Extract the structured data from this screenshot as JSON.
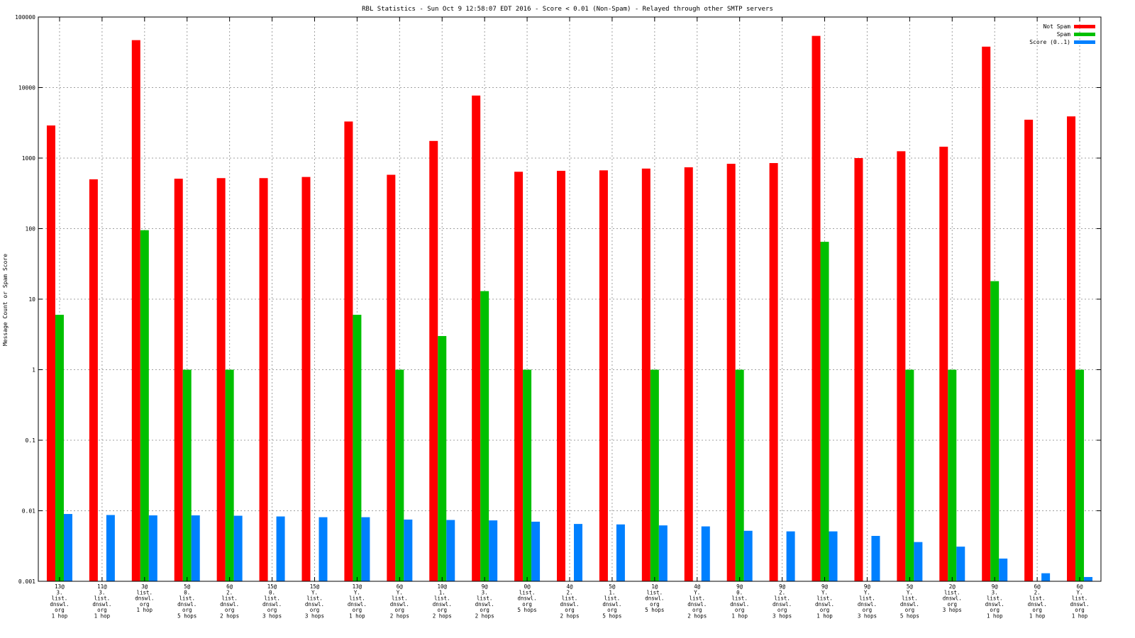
{
  "chart_data": {
    "type": "bar",
    "title": "RBL Statistics - Sun Oct  9 12:58:07 EDT 2016 - Score < 0.01 (Non-Spam) - Relayed through other SMTP servers",
    "xlabel": "",
    "ylabel": "Message Count or Spam Score",
    "yscale": "log",
    "ylim": [
      0.001,
      100000
    ],
    "yticks": [
      "100000",
      "10000",
      "1000",
      "100",
      "10",
      "1",
      "0.1",
      "0.01",
      "0.001"
    ],
    "grid": true,
    "legend_position": "top-right",
    "categories": [
      [
        "13@",
        "3.",
        "list.",
        "dnswl.",
        "org",
        "1 hop"
      ],
      [
        "11@",
        "3.",
        "list.",
        "dnswl.",
        "org",
        "1 hop"
      ],
      [
        "3@",
        "list.",
        "dnswl.",
        "org",
        "1 hop"
      ],
      [
        "5@",
        "0.",
        "list.",
        "dnswl.",
        "org",
        "5 hops"
      ],
      [
        "6@",
        "2.",
        "list.",
        "dnswl.",
        "org",
        "2 hops"
      ],
      [
        "15@",
        "0.",
        "list.",
        "dnswl.",
        "org",
        "3 hops"
      ],
      [
        "15@",
        "Y.",
        "list.",
        "dnswl.",
        "org",
        "3 hops"
      ],
      [
        "13@",
        "Y.",
        "list.",
        "dnswl.",
        "org",
        "1 hop"
      ],
      [
        "6@",
        "Y.",
        "list.",
        "dnswl.",
        "org",
        "2 hops"
      ],
      [
        "10@",
        "1.",
        "list.",
        "dnswl.",
        "org",
        "2 hops"
      ],
      [
        "9@",
        "3.",
        "list.",
        "dnswl.",
        "org",
        "2 hops"
      ],
      [
        "0@",
        "list.",
        "dnswl.",
        "org",
        "5 hops"
      ],
      [
        "4@",
        "2.",
        "list.",
        "dnswl.",
        "org",
        "2 hops"
      ],
      [
        "5@",
        "1.",
        "list.",
        "dnswl.",
        "org",
        "5 hops"
      ],
      [
        "1@",
        "list.",
        "dnswl.",
        "org",
        "5 hops"
      ],
      [
        "4@",
        "Y.",
        "list.",
        "dnswl.",
        "org",
        "2 hops"
      ],
      [
        "9@",
        "0.",
        "list.",
        "dnswl.",
        "org",
        "1 hop"
      ],
      [
        "9@",
        "2.",
        "list.",
        "dnswl.",
        "org",
        "3 hops"
      ],
      [
        "9@",
        "Y.",
        "list.",
        "dnswl.",
        "org",
        "1 hop"
      ],
      [
        "9@",
        "Y.",
        "list.",
        "dnswl.",
        "org",
        "3 hops"
      ],
      [
        "5@",
        "Y.",
        "list.",
        "dnswl.",
        "org",
        "5 hops"
      ],
      [
        "2@",
        "list.",
        "dnswl.",
        "org",
        "3 hops"
      ],
      [
        "9@",
        "3.",
        "list.",
        "dnswl.",
        "org",
        "1 hop"
      ],
      [
        "6@",
        "2.",
        "list.",
        "dnswl.",
        "org",
        "1 hop"
      ],
      [
        "6@",
        "Y.",
        "list.",
        "dnswl.",
        "org",
        "1 hop"
      ]
    ],
    "series": [
      {
        "name": "Not Spam",
        "color": "#ff0000",
        "values": [
          2900,
          500,
          47000,
          510,
          520,
          520,
          540,
          3300,
          580,
          1750,
          7700,
          640,
          660,
          670,
          710,
          740,
          830,
          850,
          54000,
          1000,
          1250,
          1450,
          38000,
          3500,
          3900
        ]
      },
      {
        "name": "Spam",
        "color": "#00c000",
        "values": [
          6,
          null,
          95,
          1,
          1,
          null,
          null,
          6,
          1,
          3,
          13,
          1,
          null,
          null,
          1,
          null,
          1,
          null,
          65,
          null,
          1,
          1,
          18,
          null,
          1
        ]
      },
      {
        "name": "Score (0..1)",
        "color": "#0080ff",
        "values": [
          0.009,
          0.0087,
          0.0086,
          0.0086,
          0.0085,
          0.0083,
          0.0081,
          0.0081,
          0.0075,
          0.0074,
          0.0073,
          0.007,
          0.0065,
          0.0064,
          0.0062,
          0.006,
          0.0052,
          0.0051,
          0.0051,
          0.0044,
          0.0036,
          0.0031,
          0.0021,
          0.0013,
          0.00115
        ]
      }
    ]
  }
}
